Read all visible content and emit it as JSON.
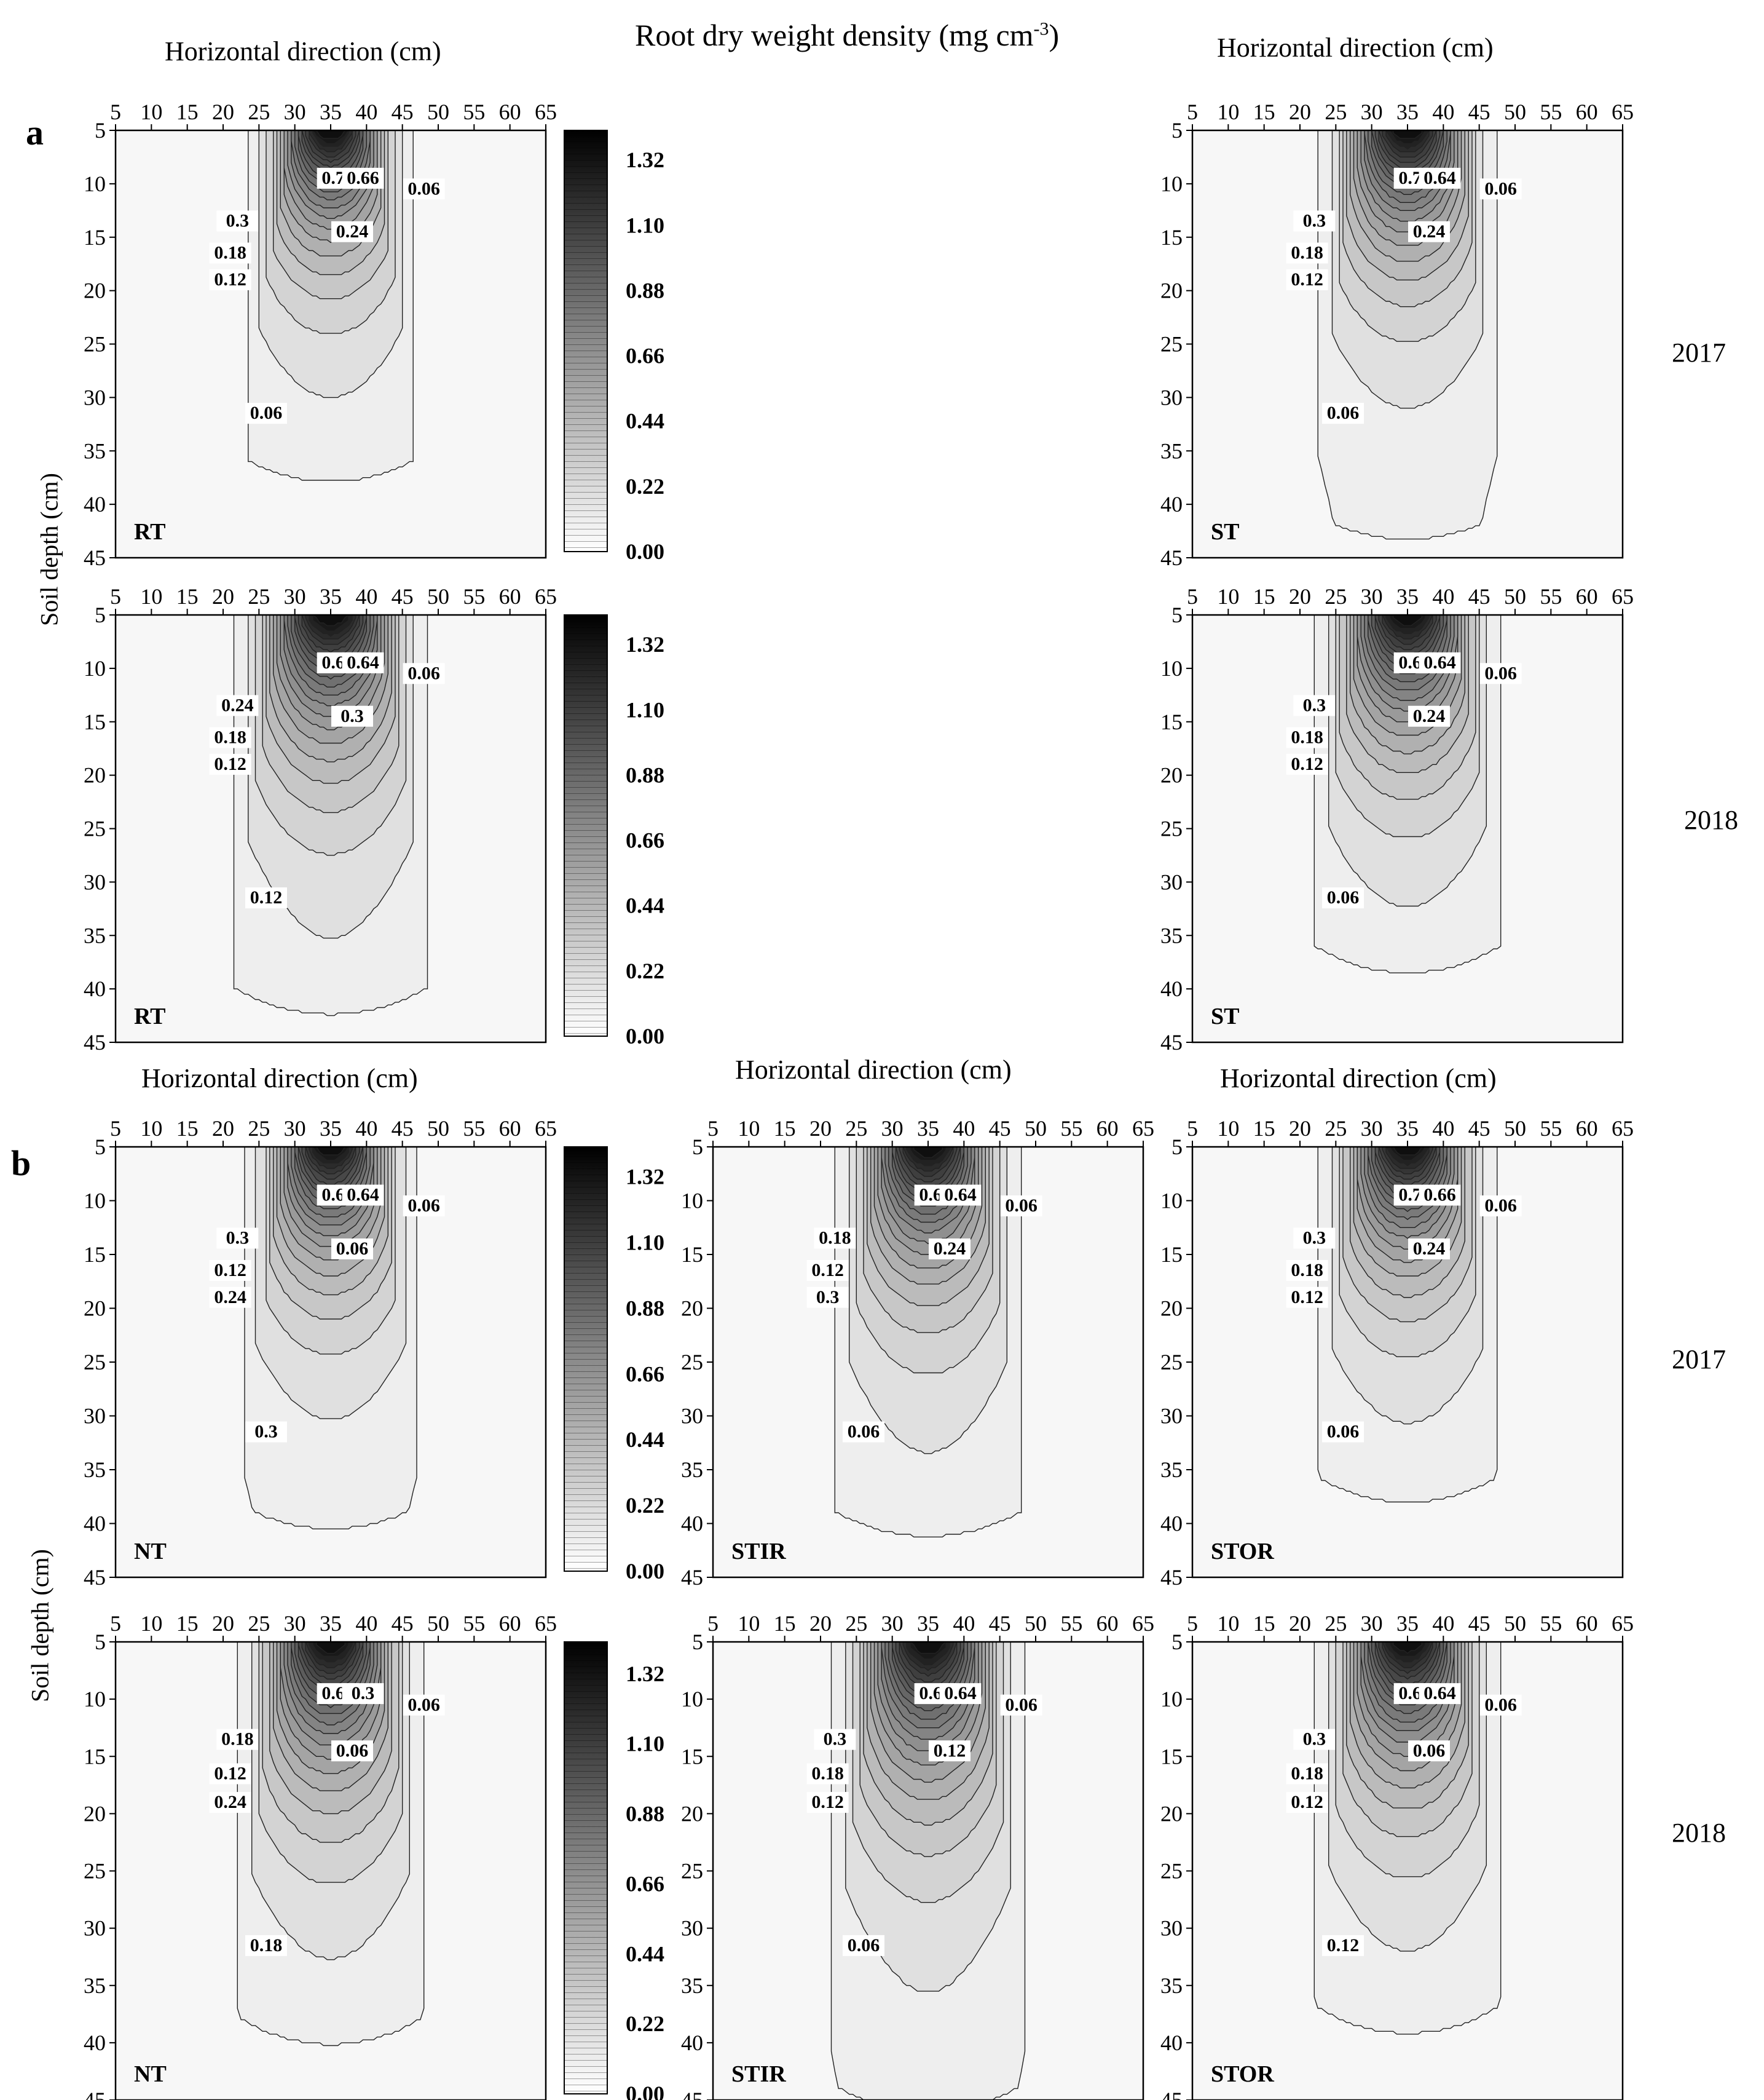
{
  "figure": {
    "title": "Root dry weight density (mg cm",
    "title_sup": "-3",
    "title_close": ")",
    "panel_a": "a",
    "panel_b": "b",
    "year_2017": "2017",
    "year_2018": "2018",
    "soil_depth_label": "Soil depth (cm)"
  },
  "chart_data": {
    "type": "contour",
    "x_label": "Horizontal direction (cm)",
    "x_ticks": [
      5,
      10,
      15,
      20,
      25,
      30,
      35,
      40,
      45,
      50,
      55,
      60,
      65
    ],
    "y_ticks": [
      5,
      10,
      15,
      20,
      25,
      30,
      35,
      40,
      45
    ],
    "xlim": [
      5,
      65
    ],
    "ylim": [
      45,
      5
    ],
    "colorbar": {
      "ticks": [
        "1.32",
        "1.10",
        "0.88",
        "0.66",
        "0.44",
        "0.22",
        "0.00"
      ],
      "range": [
        0,
        1.42
      ]
    },
    "contour_levels": [
      0.06,
      0.12,
      0.18,
      0.24,
      0.3,
      0.36,
      0.42,
      0.48,
      0.54,
      0.6,
      0.66,
      0.72,
      0.78,
      0.84,
      0.9,
      0.96,
      1.02,
      1.08,
      1.14,
      1.2,
      1.26,
      1.32
    ],
    "plots": [
      {
        "treatment": "RT",
        "year": "2017",
        "panel": "a",
        "spread": 6.0,
        "decay": 7.5,
        "tail": 0.07,
        "tailDepth": 36,
        "labels": [
          "0.72",
          "0.66",
          "0.3",
          "0.18",
          "0.12",
          "0.06",
          "0.24",
          "0.06"
        ]
      },
      {
        "treatment": "ST",
        "year": "2017",
        "panel": "a",
        "spread": 6.5,
        "decay": 7.8,
        "tail": 0.07,
        "tailDepth": 42,
        "labels": [
          "0.72",
          "0.64",
          "0.3",
          "0.18",
          "0.12",
          "0.06",
          "0.24",
          "0.06"
        ]
      },
      {
        "treatment": "RT",
        "year": "2018",
        "panel": "a",
        "spread": 7.0,
        "decay": 8.5,
        "tail": 0.08,
        "tailDepth": 40,
        "labels": [
          "0.66",
          "0.64",
          "0.24",
          "0.18",
          "0.12",
          "0.06",
          "0.3",
          "0.12"
        ]
      },
      {
        "treatment": "ST",
        "year": "2018",
        "panel": "a",
        "spread": 6.8,
        "decay": 8.2,
        "tail": 0.07,
        "tailDepth": 36,
        "labels": [
          "0.66",
          "0.64",
          "0.3",
          "0.18",
          "0.12",
          "0.06",
          "0.24",
          "0.06"
        ]
      },
      {
        "treatment": "NT",
        "year": "2017",
        "panel": "b",
        "spread": 6.2,
        "decay": 7.6,
        "tail": 0.07,
        "tailDepth": 39,
        "labels": [
          "0.66",
          "0.64",
          "0.3",
          "0.12",
          "0.24",
          "0.06",
          "0.06",
          "0.3"
        ]
      },
      {
        "treatment": "STIR",
        "year": "2017",
        "panel": "b",
        "spread": 6.6,
        "decay": 8.0,
        "tail": 0.08,
        "tailDepth": 39,
        "labels": [
          "0.66",
          "0.64",
          "0.18",
          "0.12",
          "0.3",
          "0.06",
          "0.24",
          "0.06"
        ]
      },
      {
        "treatment": "STOR",
        "year": "2017",
        "panel": "b",
        "spread": 6.4,
        "decay": 7.7,
        "tail": 0.07,
        "tailDepth": 36,
        "labels": [
          "0.72",
          "0.66",
          "0.3",
          "0.18",
          "0.12",
          "0.06",
          "0.24",
          "0.06"
        ]
      },
      {
        "treatment": "NT",
        "year": "2018",
        "panel": "b",
        "spread": 6.8,
        "decay": 8.3,
        "tail": 0.07,
        "tailDepth": 38,
        "labels": [
          "0.64",
          "0.3",
          "0.18",
          "0.12",
          "0.24",
          "0.06",
          "0.06",
          "0.18"
        ]
      },
      {
        "treatment": "STIR",
        "year": "2018",
        "panel": "b",
        "spread": 7.0,
        "decay": 8.6,
        "tail": 0.08,
        "tailDepth": 44,
        "labels": [
          "0.66",
          "0.64",
          "0.3",
          "0.18",
          "0.12",
          "0.06",
          "0.12",
          "0.06"
        ]
      },
      {
        "treatment": "STOR",
        "year": "2018",
        "panel": "b",
        "spread": 6.7,
        "decay": 8.1,
        "tail": 0.07,
        "tailDepth": 37,
        "labels": [
          "0.66",
          "0.64",
          "0.3",
          "0.18",
          "0.12",
          "0.06",
          "0.06",
          "0.12"
        ]
      }
    ]
  }
}
